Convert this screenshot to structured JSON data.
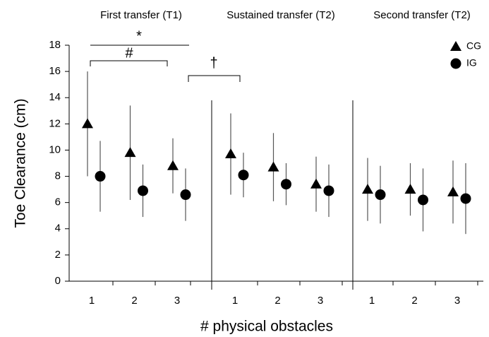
{
  "chart_data": {
    "type": "scatter",
    "groups": [
      "First transfer (T1)",
      "Sustained transfer (T2)",
      "Second transfer (T2)"
    ],
    "categories": [
      "1",
      "2",
      "3",
      "1",
      "2",
      "3",
      "1",
      "2",
      "3"
    ],
    "y_label": "Toe Clearance (cm)",
    "x_label": "# physical obstacles",
    "ylim": [
      0,
      18
    ],
    "yticks": [
      0,
      2,
      4,
      6,
      8,
      10,
      12,
      14,
      16,
      18
    ],
    "series": [
      {
        "name": "CG",
        "marker": "triangle",
        "color": "#000000",
        "values": [
          12.0,
          9.8,
          8.8,
          9.7,
          8.7,
          7.4,
          7.0,
          7.0,
          6.8
        ],
        "errors": [
          4.0,
          3.6,
          2.1,
          3.1,
          2.6,
          2.1,
          2.4,
          2.0,
          2.4
        ]
      },
      {
        "name": "IG",
        "marker": "circle",
        "color": "#000000",
        "values": [
          8.0,
          6.9,
          6.6,
          8.1,
          7.4,
          6.9,
          6.6,
          6.2,
          6.3
        ],
        "errors": [
          2.7,
          2.0,
          2.0,
          1.7,
          1.6,
          2.0,
          2.2,
          2.4,
          2.7
        ]
      }
    ],
    "annotations": [
      "*",
      "#",
      "†"
    ]
  }
}
